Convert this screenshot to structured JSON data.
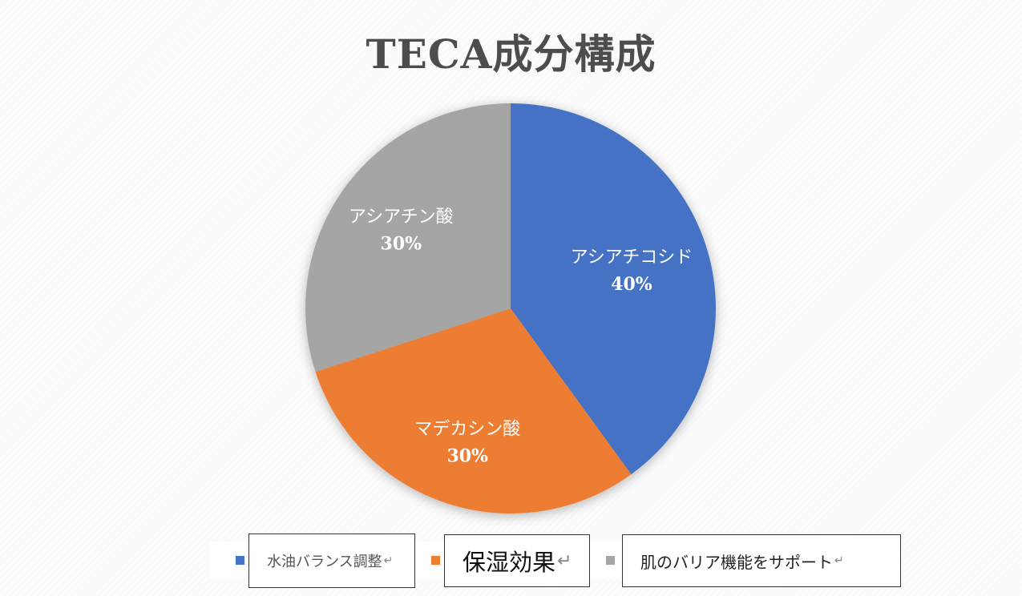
{
  "chart_data": {
    "type": "pie",
    "title": "TECA成分構成",
    "slices": [
      {
        "label": "アシアチコシド",
        "value": 40,
        "percent_label": "40%",
        "color": "#4472c4"
      },
      {
        "label": "マデカシン酸",
        "value": 30,
        "percent_label": "30%",
        "color": "#ed7d31"
      },
      {
        "label": "アシアチン酸",
        "value": 30,
        "percent_label": "30%",
        "color": "#a5a5a5"
      }
    ],
    "legend": {
      "placement": "bottom",
      "entries": [
        {
          "text": "水油バランス調整",
          "color": "#4472c4"
        },
        {
          "text": "保湿効果",
          "color": "#ed7d31"
        },
        {
          "text": "肌のバリア機能をサポート",
          "color": "#a5a5a5"
        }
      ]
    }
  }
}
